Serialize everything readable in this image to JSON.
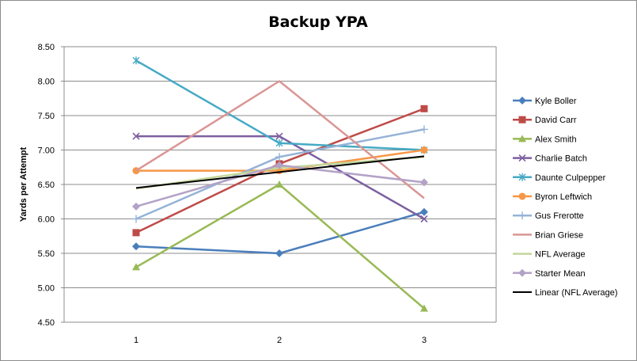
{
  "chart_data": {
    "type": "line",
    "title": "Backup YPA",
    "xlabel": "",
    "ylabel": "Yards per Attempt",
    "x": [
      "1",
      "2",
      "3"
    ],
    "ylim": [
      4.5,
      8.5
    ],
    "yticks": [
      "4.50",
      "5.00",
      "5.50",
      "6.00",
      "6.50",
      "7.00",
      "7.50",
      "8.00",
      "8.50"
    ],
    "grid": "horizontal",
    "legend": "right",
    "series": [
      {
        "name": "Kyle Boller",
        "values": [
          5.6,
          5.5,
          6.1
        ],
        "color": "#4a7ebb",
        "marker": "diamond"
      },
      {
        "name": "David Carr",
        "values": [
          5.8,
          6.8,
          7.6
        ],
        "color": "#be4b48",
        "marker": "square"
      },
      {
        "name": "Alex Smith",
        "values": [
          5.3,
          6.5,
          4.7
        ],
        "color": "#98b954",
        "marker": "triangle"
      },
      {
        "name": "Charlie Batch",
        "values": [
          7.2,
          7.2,
          6.0
        ],
        "color": "#7d60a0",
        "marker": "x"
      },
      {
        "name": "Daunte Culpepper",
        "values": [
          8.3,
          7.1,
          7.0
        ],
        "color": "#46aac5",
        "marker": "star"
      },
      {
        "name": "Byron Leftwich",
        "values": [
          6.7,
          6.7,
          7.0
        ],
        "color": "#f79646",
        "marker": "circle"
      },
      {
        "name": "Gus Frerotte",
        "values": [
          6.0,
          6.9,
          7.3
        ],
        "color": "#95b3d7",
        "marker": "plus"
      },
      {
        "name": "Brian Griese",
        "values": [
          6.7,
          8.0,
          6.3
        ],
        "color": "#d99694",
        "marker": "none"
      },
      {
        "name": "NFL Average",
        "values": [
          6.44,
          6.74,
          6.9
        ],
        "color": "#c3d69b",
        "marker": "none"
      },
      {
        "name": "Starter Mean",
        "values": [
          6.18,
          6.78,
          6.53
        ],
        "color": "#b3a2c7",
        "marker": "diamond"
      },
      {
        "name": "Linear (NFL Average)",
        "values": [
          6.45,
          6.68,
          6.91
        ],
        "color": "#000000",
        "marker": "none"
      }
    ]
  }
}
